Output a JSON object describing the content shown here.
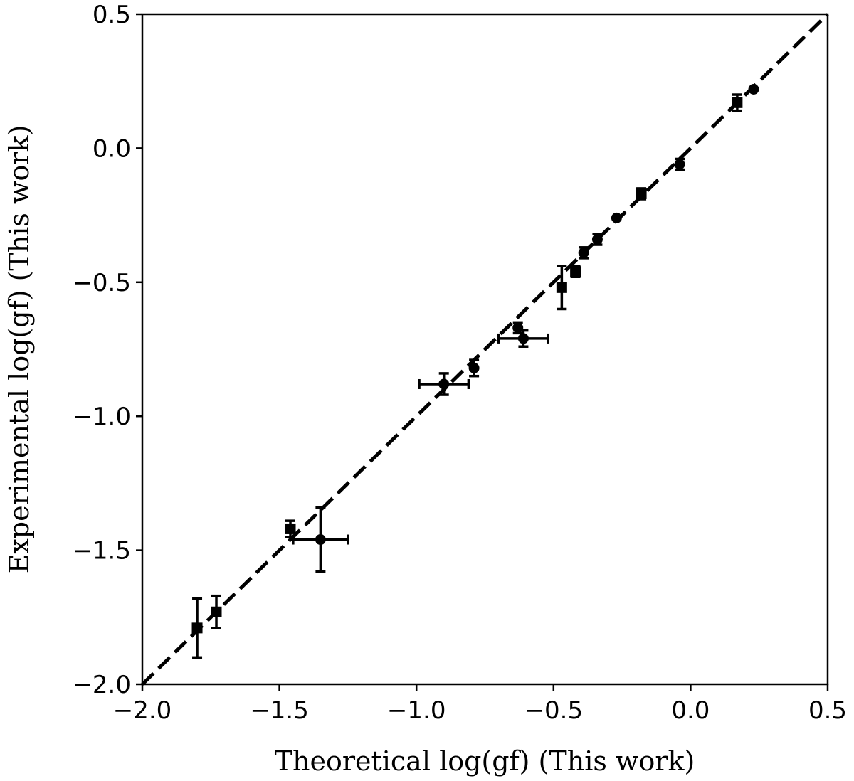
{
  "chart_data": {
    "type": "scatter",
    "title": "",
    "xlabel": "Theoretical log(gf) (This work)",
    "ylabel": "Experimental log(gf) (This work)",
    "xlim": [
      -2.0,
      0.5
    ],
    "ylim": [
      -2.0,
      0.5
    ],
    "xticks": [
      -2.0,
      -1.5,
      -1.0,
      -0.5,
      0.0,
      0.5
    ],
    "yticks": [
      -2.0,
      -1.5,
      -1.0,
      -0.5,
      0.0,
      0.5
    ],
    "xtick_labels": [
      "−2.0",
      "−1.5",
      "−1.0",
      "−0.5",
      "0.0",
      "0.5"
    ],
    "ytick_labels": [
      "−2.0",
      "−1.5",
      "−1.0",
      "−0.5",
      "0.0",
      "0.5"
    ],
    "grid": false,
    "reference_line": {
      "style": "dashed",
      "from": [
        -2.0,
        -2.0
      ],
      "to": [
        0.5,
        0.5
      ]
    },
    "series": [
      {
        "marker": "square",
        "points": [
          {
            "x": -1.8,
            "y": -1.79,
            "yerr": 0.11,
            "xerr": 0.0
          },
          {
            "x": -1.73,
            "y": -1.73,
            "yerr": 0.06,
            "xerr": 0.0
          },
          {
            "x": -1.46,
            "y": -1.42,
            "yerr": 0.03,
            "xerr": 0.0
          },
          {
            "x": -0.47,
            "y": -0.52,
            "yerr": 0.08,
            "xerr": 0.0
          },
          {
            "x": -0.42,
            "y": -0.46,
            "yerr": 0.02,
            "xerr": 0.0
          },
          {
            "x": -0.18,
            "y": -0.17,
            "yerr": 0.02,
            "xerr": 0.0
          },
          {
            "x": 0.17,
            "y": 0.17,
            "yerr": 0.03,
            "xerr": 0.0
          }
        ]
      },
      {
        "marker": "circle",
        "points": [
          {
            "x": -1.35,
            "y": -1.46,
            "yerr": 0.12,
            "xerr": 0.1
          },
          {
            "x": -0.9,
            "y": -0.88,
            "yerr": 0.04,
            "xerr": 0.09
          },
          {
            "x": -0.79,
            "y": -0.82,
            "yerr": 0.03,
            "xerr": 0.0
          },
          {
            "x": -0.63,
            "y": -0.67,
            "yerr": 0.02,
            "xerr": 0.0
          },
          {
            "x": -0.61,
            "y": -0.71,
            "yerr": 0.03,
            "xerr": 0.09
          },
          {
            "x": -0.39,
            "y": -0.39,
            "yerr": 0.02,
            "xerr": 0.0
          },
          {
            "x": -0.34,
            "y": -0.34,
            "yerr": 0.02,
            "xerr": 0.0
          },
          {
            "x": -0.27,
            "y": -0.26,
            "yerr": 0.0,
            "xerr": 0.0
          },
          {
            "x": -0.04,
            "y": -0.06,
            "yerr": 0.02,
            "xerr": 0.0
          },
          {
            "x": 0.23,
            "y": 0.22,
            "yerr": 0.0,
            "xerr": 0.0
          }
        ]
      }
    ]
  }
}
